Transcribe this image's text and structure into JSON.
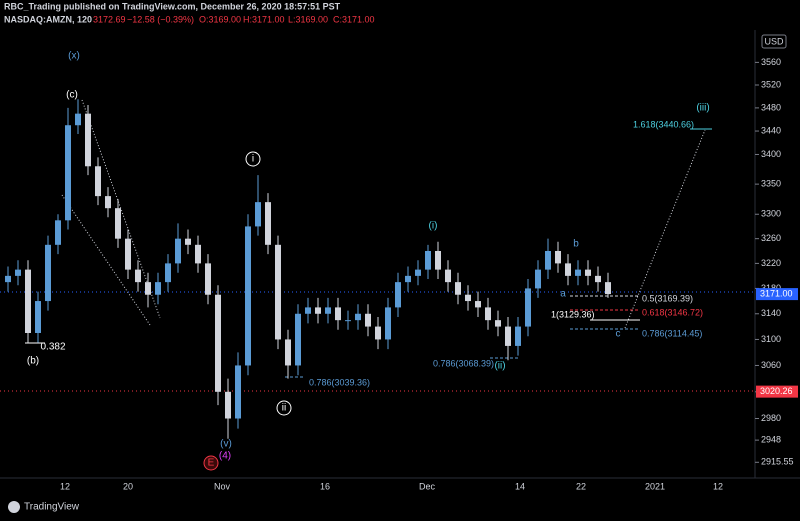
{
  "header": {
    "title": "RBC_Trading published on TradingView.com, December 26, 2020 18:57:51 PST",
    "symbol": "NASDAQ:AMZN, 120",
    "last": "3172.69",
    "change": "−12.58 (−0.39%)",
    "o": "O:3169.00",
    "h": "H:3171.00",
    "l": "L:3169.00",
    "c": "C:3171.00"
  },
  "footer": {
    "brand": "TradingView"
  },
  "chart_data": {
    "type": "candlestick",
    "log": true,
    "grid": false,
    "up_color": "#5b9bd5",
    "down_color": "#d1d4dc",
    "currency": "USD",
    "ylim": [
      2900,
      3600
    ],
    "yticks": [
      3560,
      3520,
      3480,
      3440,
      3400,
      3350,
      3300,
      3260,
      3220,
      3180,
      3140,
      3100,
      3060,
      3020,
      2980,
      2948,
      2915.55
    ],
    "price_labels": [
      {
        "value": 3171,
        "label": "3171.00",
        "color": "#2962ff"
      },
      {
        "value": 3020.26,
        "label": "3020.26",
        "color": "#f23645"
      }
    ],
    "xticks": [
      "12",
      "20",
      "Nov",
      "16",
      "Dec",
      "14",
      "22",
      "2021",
      "12"
    ],
    "open": [
      3190,
      3200,
      3210,
      3110,
      3160,
      3250,
      3290,
      3450,
      3470,
      3380,
      3330,
      3310,
      3260,
      3210,
      3190,
      3170,
      3190,
      3220,
      3260,
      3250,
      3220,
      3170,
      3020,
      2980,
      3060,
      3280,
      3320,
      3250,
      3100,
      3060,
      3140,
      3150,
      3140,
      3150,
      3130,
      3130,
      3140,
      3120,
      3100,
      3150,
      3190,
      3200,
      3210,
      3240,
      3210,
      3190,
      3170,
      3160,
      3150,
      3130,
      3120,
      3090,
      3120,
      3180,
      3210,
      3240,
      3220,
      3200,
      3210,
      3200,
      3190
    ],
    "high": [
      3215,
      3225,
      3225,
      3175,
      3265,
      3300,
      3480,
      3495,
      3485,
      3395,
      3345,
      3325,
      3275,
      3225,
      3205,
      3205,
      3235,
      3285,
      3275,
      3265,
      3235,
      3185,
      3040,
      3080,
      3300,
      3365,
      3335,
      3265,
      3115,
      3155,
      3165,
      3165,
      3165,
      3165,
      3145,
      3155,
      3155,
      3135,
      3165,
      3205,
      3215,
      3225,
      3250,
      3255,
      3225,
      3205,
      3185,
      3175,
      3165,
      3145,
      3135,
      3135,
      3195,
      3225,
      3260,
      3255,
      3235,
      3225,
      3225,
      3215,
      3205
    ],
    "low": [
      3175,
      3185,
      3095,
      3095,
      3145,
      3235,
      3275,
      3435,
      3365,
      3315,
      3295,
      3245,
      3195,
      3175,
      3150,
      3155,
      3175,
      3205,
      3235,
      3205,
      3155,
      3000,
      2950,
      2965,
      3045,
      3265,
      3235,
      3085,
      3040,
      3045,
      3125,
      3125,
      3125,
      3115,
      3115,
      3115,
      3105,
      3085,
      3085,
      3135,
      3175,
      3185,
      3195,
      3195,
      3175,
      3155,
      3145,
      3135,
      3115,
      3105,
      3068,
      3075,
      3105,
      3165,
      3195,
      3205,
      3185,
      3185,
      3185,
      3175,
      3165
    ],
    "close": [
      3200,
      3210,
      3110,
      3160,
      3250,
      3290,
      3450,
      3470,
      3380,
      3330,
      3310,
      3260,
      3210,
      3190,
      3170,
      3190,
      3220,
      3260,
      3250,
      3220,
      3170,
      3020,
      2980,
      3060,
      3280,
      3320,
      3250,
      3100,
      3060,
      3140,
      3150,
      3140,
      3150,
      3130,
      3130,
      3140,
      3120,
      3100,
      3150,
      3190,
      3200,
      3210,
      3240,
      3210,
      3190,
      3170,
      3160,
      3150,
      3130,
      3120,
      3090,
      3120,
      3180,
      3210,
      3240,
      3220,
      3200,
      3210,
      3200,
      3190,
      3171
    ],
    "annotations": [
      {
        "text": "(x)",
        "color": "#5b9bd5"
      },
      {
        "text": "(c)",
        "color": "#ffffff"
      },
      {
        "text": "(b)",
        "color": "#ffffff"
      },
      {
        "text": "0.382",
        "color": "#ffffff"
      },
      {
        "text": "i",
        "color": "#ffffff"
      },
      {
        "text": "ii",
        "color": "#ffffff"
      },
      {
        "text": "(i)",
        "color": "#4dd0e1"
      },
      {
        "text": "(ii)",
        "color": "#4dd0e1"
      },
      {
        "text": "b",
        "color": "#5b9bd5"
      },
      {
        "text": "a",
        "color": "#5b9bd5"
      },
      {
        "text": "c",
        "color": "#5b9bd5"
      },
      {
        "text": "(iii)",
        "color": "#4dd0e1"
      },
      {
        "text": "(v)",
        "color": "#5b9bd5"
      },
      {
        "text": "(4)",
        "color": "#e040fb"
      },
      {
        "text": "E",
        "color": "#f23645"
      },
      {
        "text": "1.618(3440.66)",
        "color": "#4dd0e1"
      },
      {
        "text": "0.5(3169.39)",
        "color": "#d1d4dc"
      },
      {
        "text": "0.618(3146.72)",
        "color": "#f23645"
      },
      {
        "text": "1(3129.36)",
        "color": "#ffffff"
      },
      {
        "text": "0.786(3114.45)",
        "color": "#5b9bd5"
      },
      {
        "text": "0.786(3068.39)",
        "color": "#5b9bd5"
      },
      {
        "text": "0.786(3039.36)",
        "color": "#5b9bd5"
      }
    ]
  }
}
